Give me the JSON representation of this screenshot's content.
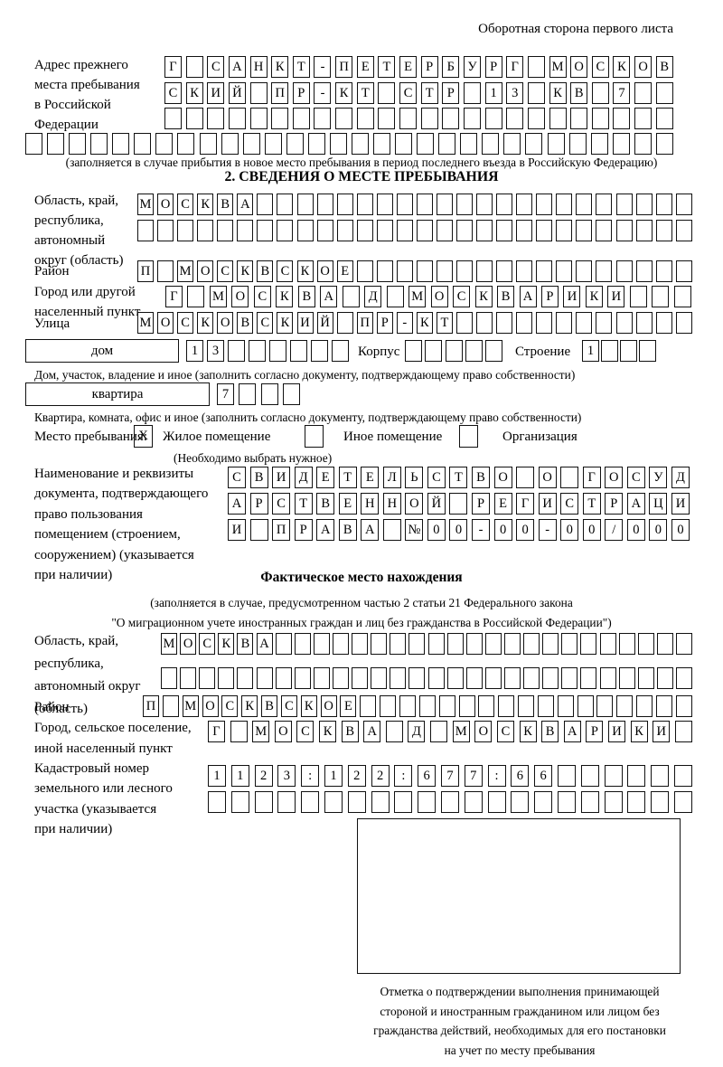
{
  "header": {
    "note": "Оборотная сторона первого листа"
  },
  "prev_address": {
    "label": [
      "Адрес прежнего",
      "места пребывания",
      "в Российской",
      "Федерации"
    ],
    "rows": {
      "r1": {
        "text": "Г САНКТ-ПЕТЕРБУРГ МОСКОВ",
        "len": 24
      },
      "r2": {
        "text": "СКИЙ ПР-КТ СТР 13 КВ 7",
        "len": 24
      },
      "r3": {
        "text": "",
        "len": 24
      },
      "r4": {
        "text": "",
        "len": 30
      }
    },
    "note": "(заполняется в случае прибытия в новое место пребывания в период последнего въезда в Российскую Федерацию)"
  },
  "section2": {
    "title": "2. СВЕДЕНИЯ О МЕСТЕ ПРЕБЫВАНИЯ",
    "region": {
      "label": [
        "Область, край,",
        "республика,",
        "автономный",
        "округ (область)"
      ],
      "rows": {
        "r1": {
          "text": "МОСКВА",
          "len": 28
        },
        "r2": {
          "text": "",
          "len": 28
        }
      }
    },
    "district": {
      "label": "Район",
      "row": {
        "text": "П МОСКВСКОЕ",
        "len": 28
      }
    },
    "city": {
      "label": [
        "Город или другой",
        "населенный пункт"
      ],
      "row": {
        "text": "Г МОСКВА Д МОСКВАРИКИ",
        "len": 24
      }
    },
    "street": {
      "label": "Улица",
      "row": {
        "text": "МОСКОВСКИЙ ПР-КТ",
        "len": 28
      }
    },
    "house": {
      "box_label": "дом",
      "cells": {
        "text": "13",
        "len": 8
      },
      "korpus_label": "Корпус",
      "korpus_cells": {
        "text": "",
        "len": 5
      },
      "stroenie_label": "Строение",
      "stroenie_cells": {
        "text": "1",
        "len": 4
      },
      "note": "Дом, участок, владение и иное (заполнить согласно документу, подтверждающему право собственности)"
    },
    "apartment": {
      "box_label": "квартира",
      "cells": {
        "text": "7",
        "len": 4
      },
      "note": "Квартира, комната, офис и иное (заполнить согласно документу, подтверждающему право собственности)"
    },
    "stay_type": {
      "label": "Место пребывания:",
      "options": [
        {
          "label": "Жилое помещение",
          "mark": "X"
        },
        {
          "label": "Иное помещение",
          "mark": ""
        },
        {
          "label": "Организация",
          "mark": ""
        }
      ],
      "note": "(Необходимо выбрать нужное)"
    },
    "document": {
      "label": [
        "Наименование и реквизиты",
        "документа, подтверждающего",
        "право пользования",
        "помещением (строением,",
        "сооружением) (указывается",
        "при наличии)"
      ],
      "rows": {
        "r1": {
          "text": "СВИДЕТЕЛЬСТВО О ГОСУД",
          "len": 21
        },
        "r2": {
          "text": "АРСТВЕННОЙ РЕГИСТРАЦИ",
          "len": 21
        },
        "r3": {
          "text": "И ПРАВА №00-00-00/000",
          "len": 21
        }
      }
    }
  },
  "actual_location": {
    "title": "Фактическое место нахождения",
    "note": [
      "(заполняется в случае, предусмотренном частью 2 статьи 21 Федерального закона",
      "\"О миграционном учете иностранных граждан и лиц без гражданства в Российской Федерации\")"
    ],
    "region": {
      "label": [
        "Область, край,",
        "республика,",
        "автономный округ",
        "(область)"
      ],
      "rows": {
        "r1": {
          "text": "МОСКВА",
          "len": 28
        },
        "r2": {
          "text": "",
          "len": 28
        }
      }
    },
    "district": {
      "label": "Район",
      "row": {
        "text": "П МОСКВСКОЕ",
        "len": 28
      }
    },
    "city": {
      "label": [
        "Город, сельское поселение,",
        "иной населенный пункт"
      ],
      "row": {
        "text": "Г МОСКВА Д МОСКВАРИКИ",
        "len": 22
      }
    },
    "cadastral": {
      "label": [
        "Кадастровый номер",
        "земельного или лесного",
        "участка (указывается",
        "при наличии)"
      ],
      "rows": {
        "r1": {
          "text": "1123:122:677:66",
          "len": 21
        },
        "r2": {
          "text": "",
          "len": 21
        }
      }
    },
    "stamp_caption": [
      "Отметка о подтверждении выполнения принимающей",
      "стороной и иностранным гражданином или лицом без",
      "гражданства действий, необходимых для его постановки",
      "на учет по месту пребывания"
    ]
  }
}
